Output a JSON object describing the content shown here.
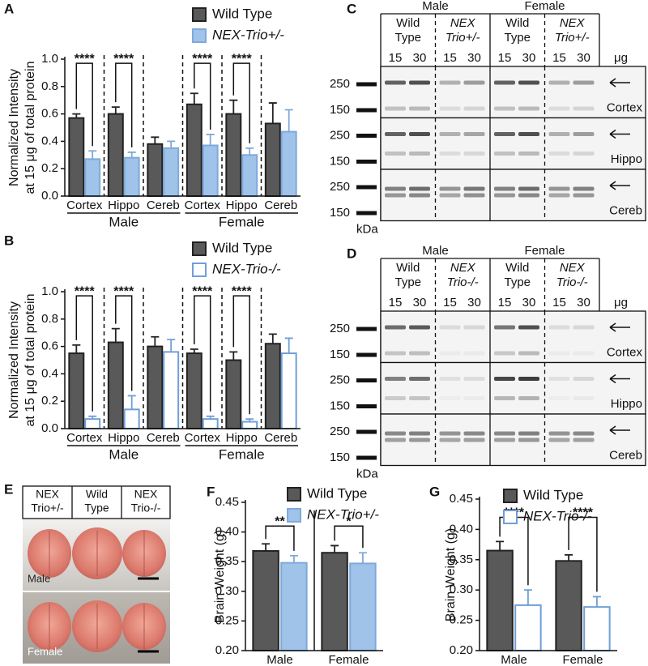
{
  "chart_data": [
    {
      "type": "bar",
      "panel_label": "A",
      "ylabel": [
        "Normalized Intensity",
        "at 15 μg of total protein"
      ],
      "groups": [
        {
          "name": "Male",
          "categories": [
            "Cortex",
            "Hippo",
            "Cereb"
          ]
        },
        {
          "name": "Female",
          "categories": [
            "Cortex",
            "Hippo",
            "Cereb"
          ]
        }
      ],
      "series": [
        {
          "name": "Wild Type",
          "color": "#222222",
          "fill": "#595959",
          "values": [
            0.57,
            0.6,
            0.38,
            0.67,
            0.6,
            0.53
          ],
          "errors": [
            0.03,
            0.05,
            0.05,
            0.08,
            0.1,
            0.15
          ]
        },
        {
          "name": "NEX-Trio+/-",
          "color": "#7fa9db",
          "fill": "#9fc3e9",
          "values": [
            0.27,
            0.28,
            0.35,
            0.37,
            0.3,
            0.47
          ],
          "errors": [
            0.06,
            0.04,
            0.05,
            0.08,
            0.05,
            0.16
          ]
        }
      ],
      "significance": [
        "****",
        "****",
        null,
        "****",
        "****",
        null
      ],
      "ylim": [
        0,
        1.0
      ],
      "yticks": [
        {
          "value": 0,
          "label": "0.0"
        },
        0.2,
        0.4,
        0.6,
        0.8,
        {
          "value": 1,
          "label": "1.0"
        }
      ]
    },
    {
      "type": "bar",
      "panel_label": "B",
      "ylabel": [
        "Normalized Intensity",
        "at 15 μg of total protein"
      ],
      "groups": [
        {
          "name": "Male",
          "categories": [
            "Cortex",
            "Hippo",
            "Cereb"
          ]
        },
        {
          "name": "Female",
          "categories": [
            "Cortex",
            "Hippo",
            "Cereb"
          ]
        }
      ],
      "series": [
        {
          "name": "Wild Type",
          "color": "#222222",
          "fill": "#595959",
          "values": [
            0.55,
            0.63,
            0.6,
            0.55,
            0.5,
            0.62
          ],
          "errors": [
            0.06,
            0.1,
            0.07,
            0.03,
            0.06,
            0.07
          ]
        },
        {
          "name": "NEX-Trio-/-",
          "color": "#6f9fd8",
          "fill": "#ffffff",
          "values": [
            0.07,
            0.14,
            0.56,
            0.07,
            0.05,
            0.55
          ],
          "errors": [
            0.02,
            0.1,
            0.09,
            0.02,
            0.02,
            0.11
          ]
        }
      ],
      "significance": [
        "****",
        "****",
        null,
        "****",
        "****",
        null
      ],
      "ylim": [
        0,
        1.0
      ],
      "yticks": [
        {
          "value": 0,
          "label": "0.0"
        },
        0.2,
        0.4,
        0.6,
        0.8,
        {
          "value": 1,
          "label": "1.0"
        }
      ]
    },
    {
      "type": "bar",
      "panel_label": "F",
      "ylabel": [
        "Brain Weight (g)"
      ],
      "categories": [
        "Male",
        "Female"
      ],
      "series": [
        {
          "name": "Wild Type",
          "color": "#222222",
          "fill": "#595959",
          "values": [
            0.368,
            0.365
          ],
          "errors": [
            0.012,
            0.012
          ]
        },
        {
          "name": "NEX-Trio+/-",
          "color": "#7fa9db",
          "fill": "#9fc3e9",
          "values": [
            0.348,
            0.347
          ],
          "errors": [
            0.012,
            0.018
          ]
        }
      ],
      "significance": [
        "**",
        "*"
      ],
      "ylim": [
        0.2,
        0.45
      ],
      "yticks": [
        {
          "value": 0.2,
          "label": "0.20"
        },
        0.25,
        {
          "value": 0.3,
          "label": "0.30"
        },
        0.35,
        {
          "value": 0.4,
          "label": "0.40"
        },
        0.45
      ]
    },
    {
      "type": "bar",
      "panel_label": "G",
      "ylabel": [
        "Brain Weight (g)"
      ],
      "categories": [
        "Male",
        "Female"
      ],
      "series": [
        {
          "name": "Wild Type",
          "color": "#222222",
          "fill": "#595959",
          "values": [
            0.365,
            0.348
          ],
          "errors": [
            0.015,
            0.01
          ]
        },
        {
          "name": "NEX-Trio-/-",
          "color": "#6f9fd8",
          "fill": "#ffffff",
          "values": [
            0.275,
            0.272
          ],
          "errors": [
            0.025,
            0.017
          ]
        }
      ],
      "significance": [
        "****",
        "****"
      ],
      "ylim": [
        0.2,
        0.45
      ],
      "yticks": [
        {
          "value": 0.2,
          "label": "0.20"
        },
        0.25,
        {
          "value": 0.3,
          "label": "0.30"
        },
        0.35,
        {
          "value": 0.4,
          "label": "0.40"
        },
        0.45
      ]
    }
  ],
  "blots": [
    {
      "panel_label": "C",
      "sexes": [
        "Male",
        "Female"
      ],
      "genotypes": [
        [
          "Wild",
          "Type"
        ],
        [
          "NEX",
          "Trio+/-"
        ]
      ],
      "doses": [
        "15",
        "30"
      ],
      "dose_unit": "μg",
      "markers": [
        "250",
        "150"
      ],
      "marker_unit": "kDa",
      "tissues": [
        "Cortex",
        "Hippo",
        "Cereb"
      ]
    },
    {
      "panel_label": "D",
      "sexes": [
        "Male",
        "Female"
      ],
      "genotypes": [
        [
          "Wild",
          "Type"
        ],
        [
          "NEX",
          "Trio-/-"
        ]
      ],
      "doses": [
        "15",
        "30"
      ],
      "dose_unit": "μg",
      "markers": [
        "250",
        "150"
      ],
      "marker_unit": "kDa",
      "tissues": [
        "Cortex",
        "Hippo",
        "Cereb"
      ]
    }
  ],
  "photo": {
    "panel_label": "E",
    "genotypes": [
      [
        "NEX",
        "Trio+/-"
      ],
      [
        "Wild",
        "Type"
      ],
      [
        "NEX",
        "Trio-/-"
      ]
    ],
    "sexes": [
      "Male",
      "Female"
    ]
  }
}
